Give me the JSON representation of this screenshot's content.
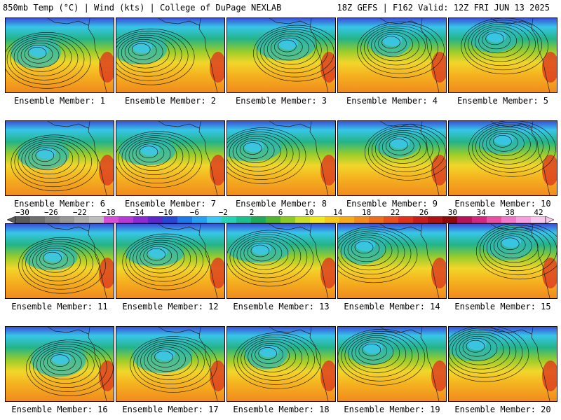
{
  "header": {
    "left": "850mb Temp (°C) | Wind (kts) | College of DuPage NEXLAB",
    "right": "18Z GEFS | F162 Valid: 12Z FRI JUN 13 2025"
  },
  "panels": [
    {
      "label": "Ensemble Member: 1"
    },
    {
      "label": "Ensemble Member: 2"
    },
    {
      "label": "Ensemble Member: 3"
    },
    {
      "label": "Ensemble Member: 4"
    },
    {
      "label": "Ensemble Member: 5"
    },
    {
      "label": "Ensemble Member: 6"
    },
    {
      "label": "Ensemble Member: 7"
    },
    {
      "label": "Ensemble Member: 8"
    },
    {
      "label": "Ensemble Member: 9"
    },
    {
      "label": "Ensemble Member: 10"
    },
    {
      "label": "Ensemble Member: 11"
    },
    {
      "label": "Ensemble Member: 12"
    },
    {
      "label": "Ensemble Member: 13"
    },
    {
      "label": "Ensemble Member: 14"
    },
    {
      "label": "Ensemble Member: 15"
    },
    {
      "label": "Ensemble Member: 16"
    },
    {
      "label": "Ensemble Member: 17"
    },
    {
      "label": "Ensemble Member: 18"
    },
    {
      "label": "Ensemble Member: 19"
    },
    {
      "label": "Ensemble Member: 20"
    }
  ],
  "colorbar": {
    "ticks": [
      "−30",
      "−26",
      "−22",
      "−18",
      "−14",
      "−10",
      "−6",
      "−2",
      "2",
      "6",
      "10",
      "14",
      "18",
      "22",
      "26",
      "30",
      "34",
      "38",
      "42"
    ],
    "colors": [
      "#5a5a5a",
      "#6e6e6e",
      "#828282",
      "#969696",
      "#aaaaaa",
      "#bebebe",
      "#d24fd6",
      "#b43cd2",
      "#8a2ad0",
      "#5a28c8",
      "#2846d2",
      "#1e78e6",
      "#28a0f0",
      "#3cc8f0",
      "#28d2b4",
      "#1ebe8c",
      "#1eaa5a",
      "#50b432",
      "#8cc828",
      "#c8dc28",
      "#f0e628",
      "#f5c81e",
      "#f5aa1e",
      "#f08c1e",
      "#eb6e1e",
      "#e6501e",
      "#dc321e",
      "#c81e1e",
      "#aa1414",
      "#8c0a0a",
      "#b4145a",
      "#d2287d",
      "#e650a0",
      "#f078c8",
      "#f5a0dc",
      "#f5c8eb"
    ]
  }
}
